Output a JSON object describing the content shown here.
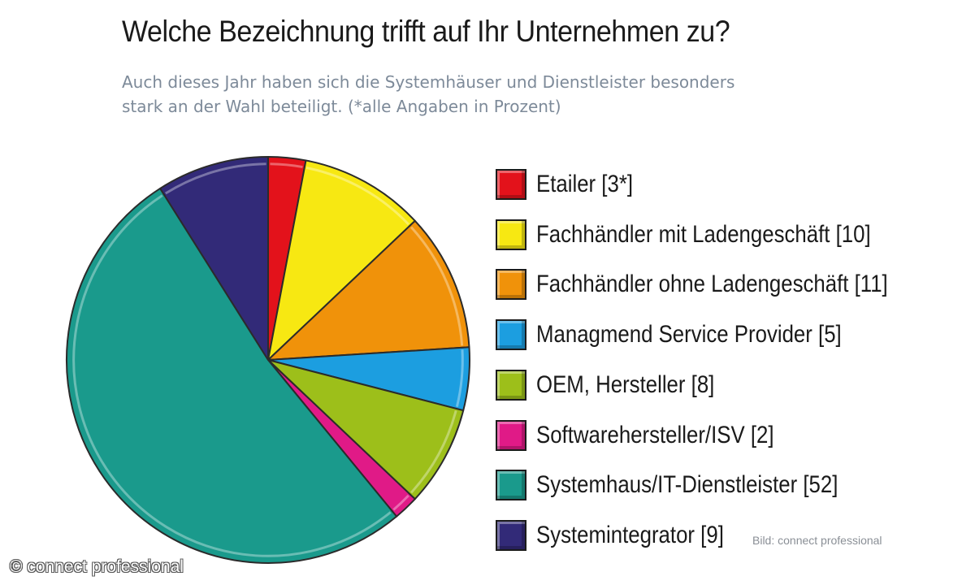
{
  "chart_data": {
    "type": "pie",
    "title": "Welche Bezeichnung trifft auf Ihr Unternehmen zu?",
    "subtitle_lines": [
      "Auch dieses Jahr haben sich die Systemhäuser und Dienstleister besonders",
      "stark an der Wahl beteiligt. (*alle Angaben in Prozent)"
    ],
    "unit": "Prozent",
    "slices": [
      {
        "label": "Etailer [3*]",
        "category": "Etailer",
        "value": 3,
        "color": "#e3121b"
      },
      {
        "label": "Fachhändler mit Ladengeschäft [10]",
        "category": "Fachhändler mit Ladengeschäft",
        "value": 10,
        "color": "#f7e812"
      },
      {
        "label": "Fachhändler ohne Ladengeschäft [11]",
        "category": "Fachhändler ohne Ladengeschäft",
        "value": 11,
        "color": "#f0920a"
      },
      {
        "label": "Managmend Service Provider [5]",
        "category": "Managmend Service Provider",
        "value": 5,
        "color": "#1c9ee0"
      },
      {
        "label": "OEM, Hersteller [8]",
        "category": "OEM, Hersteller",
        "value": 8,
        "color": "#9dbf1a"
      },
      {
        "label": "Softwarehersteller/ISV [2]",
        "category": "Softwarehersteller/ISV",
        "value": 2,
        "color": "#e01a87"
      },
      {
        "label": "Systemhaus/IT-Dienstleister [52]",
        "category": "Systemhaus/IT-Dienstleister",
        "value": 52,
        "color": "#1a9a8c"
      },
      {
        "label": "Systemintegrator [9]",
        "category": "Systemintegrator",
        "value": 9,
        "color": "#322a78"
      }
    ]
  },
  "credits": {
    "image_credit": "Bild: connect professional",
    "watermark": "© connect professional"
  }
}
